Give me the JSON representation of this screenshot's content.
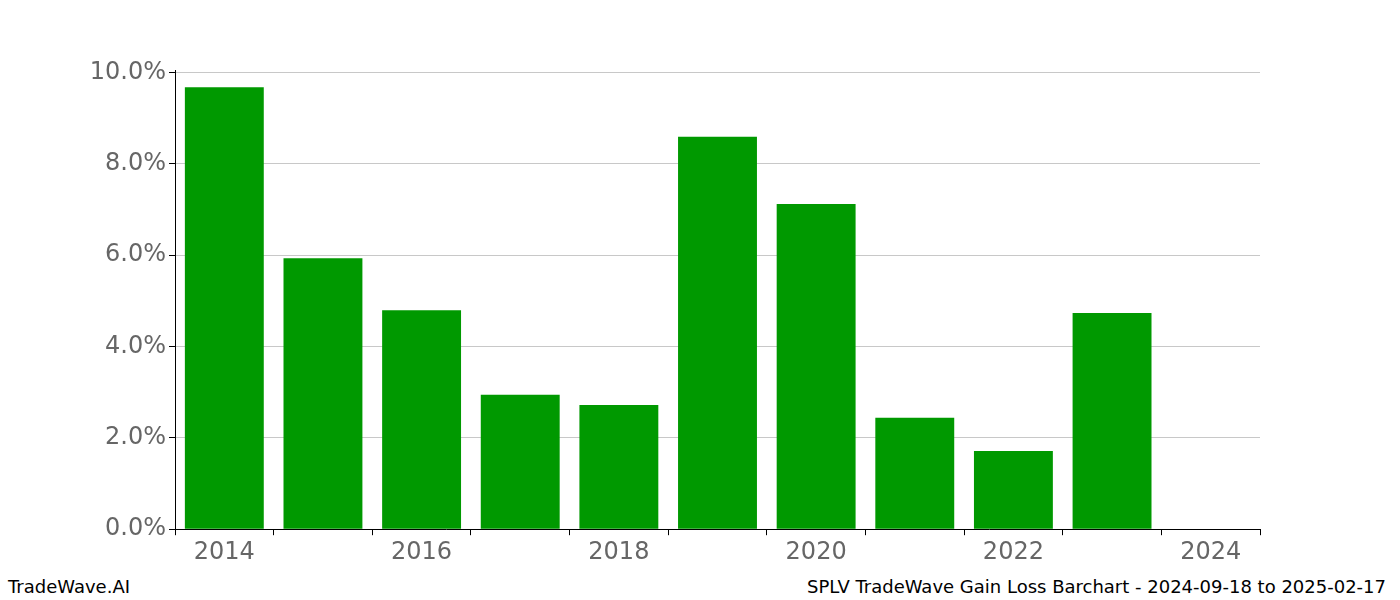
{
  "chart_data": {
    "type": "bar",
    "title": "SPLV TradeWave Gain Loss Barchart - 2024-09-18 to 2025-02-17",
    "subtitle": "TradeWave.AI",
    "categories": [
      "2014",
      null,
      "2016",
      null,
      "2018",
      null,
      "2020",
      null,
      "2022",
      null,
      "2024"
    ],
    "values": [
      9.67,
      5.93,
      4.79,
      2.94,
      2.72,
      8.59,
      7.12,
      2.44,
      1.71,
      4.73,
      null
    ],
    "color": "#009900",
    "ylim": [
      0,
      10.05
    ],
    "yticks": [
      {
        "value": 0,
        "label": "0.0%"
      },
      {
        "value": 2,
        "label": "2.0%"
      },
      {
        "value": 4,
        "label": "4.0%"
      },
      {
        "value": 6,
        "label": "6.0%"
      },
      {
        "value": 8,
        "label": "8.0%"
      },
      {
        "value": 10,
        "label": "10.0%"
      }
    ],
    "grid": true
  }
}
